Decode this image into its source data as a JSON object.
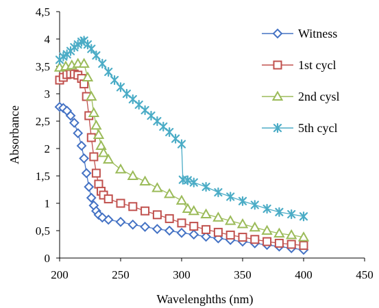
{
  "chart_data": {
    "type": "line",
    "title": "",
    "xlabel": "Wavelenghths (nm)",
    "ylabel": "Absorbance",
    "xlim": [
      200,
      450
    ],
    "ylim": [
      0,
      4.5
    ],
    "x_ticks": [
      "200",
      "250",
      "300",
      "350",
      "400",
      "450"
    ],
    "y_ticks": [
      "0",
      "0,5",
      "1",
      "1,5",
      "2",
      "2,5",
      "3",
      "3,5",
      "4",
      "4,5"
    ],
    "grid": false,
    "legend_position": "right",
    "series": [
      {
        "name": "Witness",
        "color": "#4472C4",
        "marker": "diamond",
        "points": [
          [
            200,
            2.76
          ],
          [
            203,
            2.74
          ],
          [
            206,
            2.69
          ],
          [
            209,
            2.6
          ],
          [
            212,
            2.47
          ],
          [
            215,
            2.28
          ],
          [
            218,
            2.05
          ],
          [
            220,
            1.82
          ],
          [
            222,
            1.55
          ],
          [
            224,
            1.3
          ],
          [
            226,
            1.1
          ],
          [
            228,
            0.96
          ],
          [
            230,
            0.86
          ],
          [
            232,
            0.79
          ],
          [
            235,
            0.74
          ],
          [
            240,
            0.7
          ],
          [
            250,
            0.66
          ],
          [
            260,
            0.61
          ],
          [
            270,
            0.57
          ],
          [
            280,
            0.53
          ],
          [
            290,
            0.5
          ],
          [
            300,
            0.46
          ],
          [
            310,
            0.43
          ],
          [
            320,
            0.39
          ],
          [
            330,
            0.36
          ],
          [
            340,
            0.33
          ],
          [
            350,
            0.3
          ],
          [
            360,
            0.27
          ],
          [
            370,
            0.24
          ],
          [
            380,
            0.21
          ],
          [
            390,
            0.18
          ],
          [
            400,
            0.15
          ]
        ]
      },
      {
        "name": "1st cycl",
        "color": "#C0504D",
        "marker": "square",
        "points": [
          [
            200,
            3.25
          ],
          [
            203,
            3.3
          ],
          [
            206,
            3.35
          ],
          [
            209,
            3.36
          ],
          [
            212,
            3.36
          ],
          [
            215,
            3.34
          ],
          [
            218,
            3.28
          ],
          [
            220,
            3.18
          ],
          [
            222,
            2.95
          ],
          [
            224,
            2.6
          ],
          [
            226,
            2.2
          ],
          [
            228,
            1.85
          ],
          [
            230,
            1.55
          ],
          [
            232,
            1.35
          ],
          [
            234,
            1.22
          ],
          [
            236,
            1.15
          ],
          [
            240,
            1.08
          ],
          [
            250,
            1.0
          ],
          [
            260,
            0.94
          ],
          [
            270,
            0.86
          ],
          [
            280,
            0.79
          ],
          [
            290,
            0.72
          ],
          [
            300,
            0.64
          ],
          [
            310,
            0.58
          ],
          [
            320,
            0.52
          ],
          [
            330,
            0.47
          ],
          [
            340,
            0.42
          ],
          [
            350,
            0.38
          ],
          [
            360,
            0.34
          ],
          [
            370,
            0.3
          ],
          [
            380,
            0.27
          ],
          [
            390,
            0.25
          ],
          [
            400,
            0.23
          ]
        ]
      },
      {
        "name": "2nd cysl",
        "color": "#9BBB59",
        "marker": "triangle",
        "points": [
          [
            200,
            3.48
          ],
          [
            205,
            3.5
          ],
          [
            210,
            3.52
          ],
          [
            215,
            3.55
          ],
          [
            220,
            3.55
          ],
          [
            223,
            3.3
          ],
          [
            226,
            2.95
          ],
          [
            228,
            2.65
          ],
          [
            230,
            2.42
          ],
          [
            232,
            2.25
          ],
          [
            234,
            2.05
          ],
          [
            236,
            1.92
          ],
          [
            240,
            1.8
          ],
          [
            250,
            1.62
          ],
          [
            260,
            1.5
          ],
          [
            270,
            1.4
          ],
          [
            280,
            1.28
          ],
          [
            290,
            1.17
          ],
          [
            300,
            1.05
          ],
          [
            305,
            0.9
          ],
          [
            310,
            0.86
          ],
          [
            320,
            0.8
          ],
          [
            330,
            0.74
          ],
          [
            340,
            0.68
          ],
          [
            350,
            0.62
          ],
          [
            360,
            0.56
          ],
          [
            370,
            0.5
          ],
          [
            380,
            0.45
          ],
          [
            390,
            0.42
          ],
          [
            400,
            0.38
          ]
        ]
      },
      {
        "name": "5th cycl",
        "color": "#4BACC6",
        "marker": "star",
        "points": [
          [
            200,
            3.62
          ],
          [
            203,
            3.68
          ],
          [
            206,
            3.72
          ],
          [
            209,
            3.78
          ],
          [
            212,
            3.85
          ],
          [
            215,
            3.9
          ],
          [
            218,
            3.95
          ],
          [
            220,
            3.97
          ],
          [
            223,
            3.9
          ],
          [
            226,
            3.82
          ],
          [
            230,
            3.7
          ],
          [
            235,
            3.55
          ],
          [
            240,
            3.4
          ],
          [
            245,
            3.25
          ],
          [
            250,
            3.12
          ],
          [
            255,
            3.0
          ],
          [
            260,
            2.9
          ],
          [
            265,
            2.8
          ],
          [
            270,
            2.7
          ],
          [
            275,
            2.6
          ],
          [
            280,
            2.5
          ],
          [
            285,
            2.4
          ],
          [
            290,
            2.3
          ],
          [
            295,
            2.18
          ],
          [
            300,
            2.08
          ],
          [
            301,
            1.43
          ],
          [
            305,
            1.42
          ],
          [
            310,
            1.38
          ],
          [
            320,
            1.3
          ],
          [
            330,
            1.2
          ],
          [
            340,
            1.12
          ],
          [
            350,
            1.04
          ],
          [
            360,
            0.97
          ],
          [
            370,
            0.9
          ],
          [
            380,
            0.84
          ],
          [
            390,
            0.8
          ],
          [
            400,
            0.76
          ]
        ]
      }
    ]
  }
}
